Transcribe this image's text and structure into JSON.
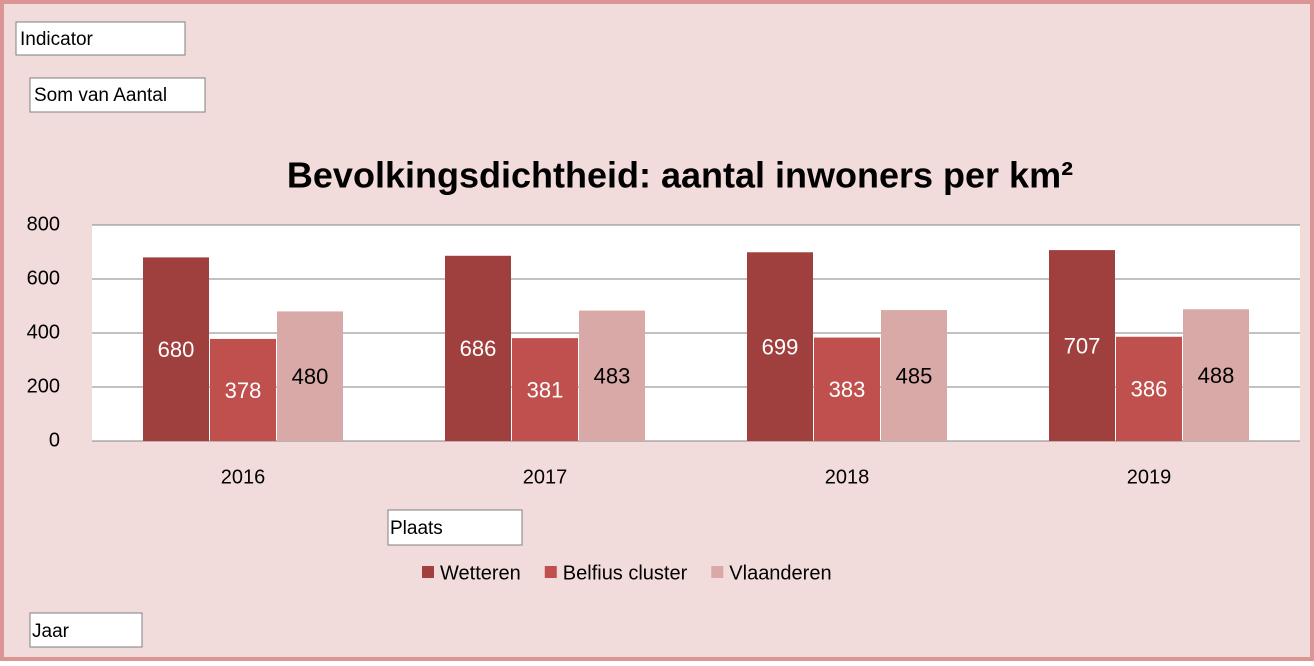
{
  "chart_data": {
    "type": "bar",
    "title": "Bevolkingsdichtheid: aantal inwoners per km²",
    "categories": [
      "2016",
      "2017",
      "2018",
      "2019"
    ],
    "series": [
      {
        "name": "Wetteren",
        "color": "#a0403e",
        "label_color": "#ffffff",
        "values": [
          680,
          686,
          699,
          707
        ]
      },
      {
        "name": "Belfius cluster",
        "color": "#c0504d",
        "label_color": "#ffffff",
        "values": [
          378,
          381,
          383,
          386
        ]
      },
      {
        "name": "Vlaanderen",
        "color": "#d9a9a8",
        "label_color": "#000000",
        "values": [
          480,
          483,
          485,
          488
        ]
      }
    ],
    "ylim": [
      0,
      800
    ],
    "yticks": [
      0,
      200,
      400,
      600,
      800
    ],
    "grid": true,
    "legend": "bottom"
  },
  "pivot_fields": {
    "filter": "Indicator",
    "values": "Som van Aantal",
    "legend": "Plaats",
    "axis": "Jaar"
  }
}
